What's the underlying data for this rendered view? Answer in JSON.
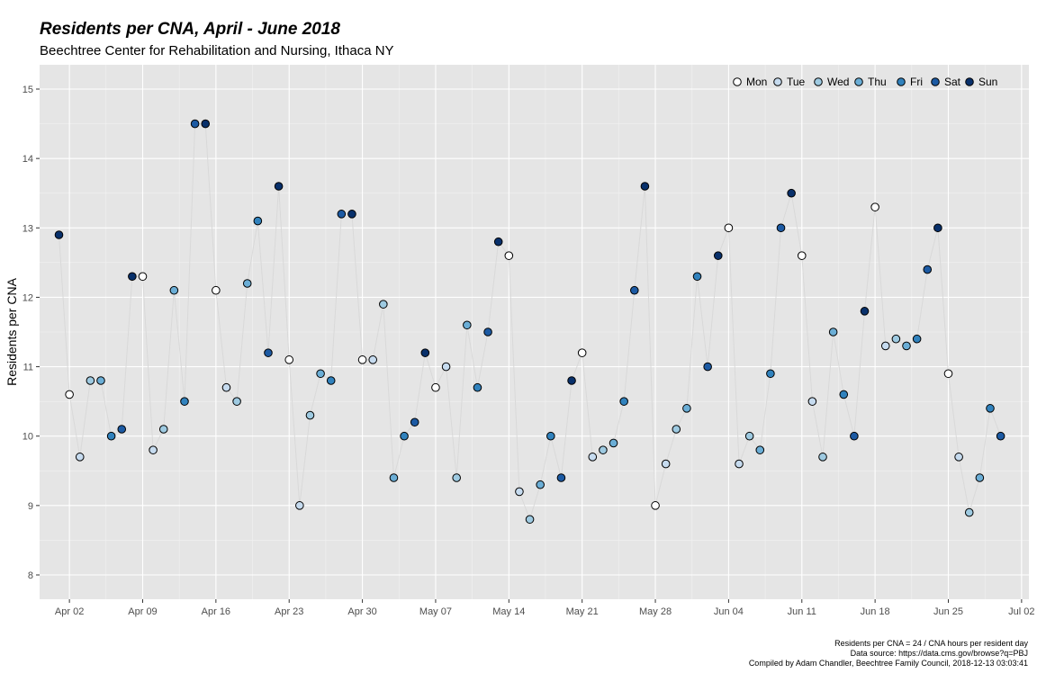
{
  "chart_data": {
    "type": "scatter",
    "title": "Residents per CNA, April - June 2018",
    "subtitle": "Beechtree Center for Rehabilitation and Nursing, Ithaca NY",
    "ylabel": "Residents per CNA",
    "xlabel": "",
    "ylim": [
      7.65,
      15.35
    ],
    "y_ticks": [
      8,
      9,
      10,
      11,
      12,
      13,
      14,
      15
    ],
    "x_range_days": [
      -1.85,
      92.7
    ],
    "x_ticks": [
      {
        "label": "Apr 02",
        "day": 1
      },
      {
        "label": "Apr 09",
        "day": 8
      },
      {
        "label": "Apr 16",
        "day": 15
      },
      {
        "label": "Apr 23",
        "day": 22
      },
      {
        "label": "Apr 30",
        "day": 29
      },
      {
        "label": "May 07",
        "day": 36
      },
      {
        "label": "May 14",
        "day": 43
      },
      {
        "label": "May 21",
        "day": 50
      },
      {
        "label": "May 28",
        "day": 57
      },
      {
        "label": "Jun 04",
        "day": 64
      },
      {
        "label": "Jun 11",
        "day": 71
      },
      {
        "label": "Jun 18",
        "day": 78
      },
      {
        "label": "Jun 25",
        "day": 85
      },
      {
        "label": "Jul 02",
        "day": 92
      }
    ],
    "x_start_date": "2018-04-01",
    "legend": {
      "position": "top-right",
      "entries": [
        "Mon",
        "Tue",
        "Wed",
        "Thu",
        "Fri",
        "Sat",
        "Sun"
      ],
      "colors": [
        "#ffffff",
        "#c6dbef",
        "#9ecae1",
        "#6baed6",
        "#3182bd",
        "#1c5aa3",
        "#08306b"
      ]
    },
    "grid": true,
    "panel_background": "#e5e5e5",
    "line_color": "#d9d9d9",
    "values": [
      12.9,
      10.6,
      9.7,
      10.8,
      10.8,
      10.0,
      10.1,
      12.3,
      12.3,
      9.8,
      10.1,
      12.1,
      10.5,
      14.5,
      14.5,
      12.1,
      10.7,
      10.5,
      12.2,
      13.1,
      11.2,
      13.6,
      11.1,
      9.0,
      10.3,
      10.9,
      10.8,
      13.2,
      13.2,
      11.1,
      11.1,
      11.9,
      9.4,
      10.0,
      10.2,
      11.2,
      10.7,
      11.0,
      9.4,
      11.6,
      10.7,
      11.5,
      12.8,
      12.6,
      9.2,
      8.8,
      9.3,
      10.0,
      9.4,
      10.8,
      11.2,
      9.7,
      9.8,
      9.9,
      10.5,
      12.1,
      13.6,
      9.0,
      9.6,
      10.1,
      10.4,
      12.3,
      11.0,
      12.6,
      13.0,
      9.6,
      10.0,
      9.8,
      10.9,
      13.0,
      13.5,
      12.6,
      10.5,
      9.7,
      11.5,
      10.6,
      10.0,
      11.8,
      13.3,
      11.3,
      11.4,
      11.3,
      11.4,
      12.4,
      13.0,
      10.9,
      9.7,
      8.9,
      9.4,
      10.4,
      10.0
    ]
  },
  "caption": {
    "line1": "Residents per CNA = 24 / CNA hours per resident day",
    "line2": "Data source: https://data.cms.gov/browse?q=PBJ",
    "line3": "Compiled by Adam Chandler, Beechtree Family Council, 2018-12-13 03:03:41"
  }
}
